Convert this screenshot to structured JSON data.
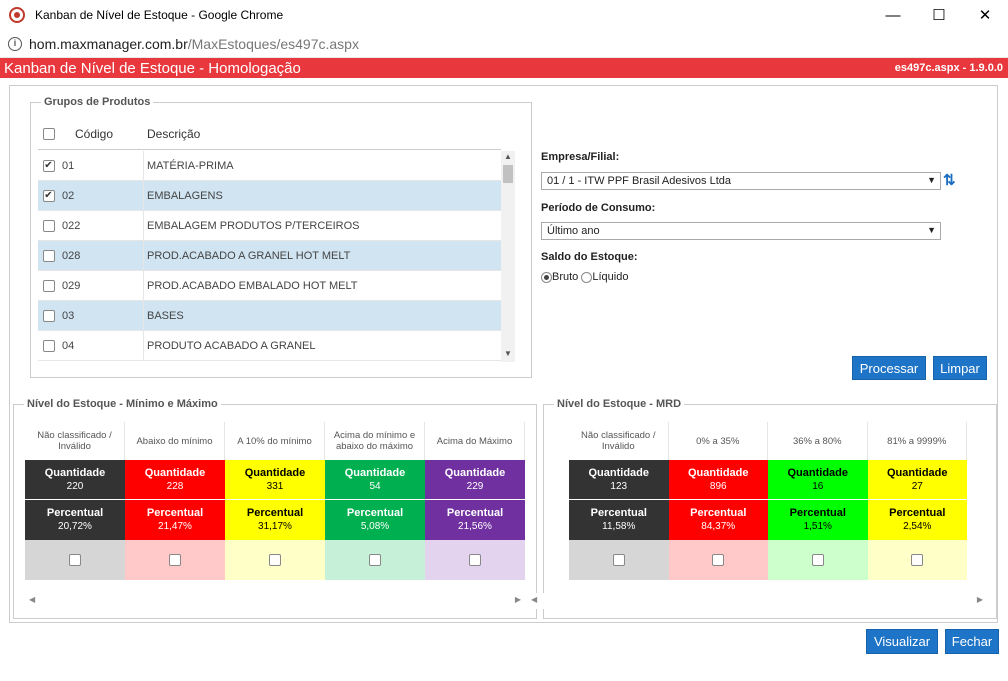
{
  "window": {
    "title": "Kanban de Nível de Estoque - Google Chrome",
    "min": "—",
    "max": "☐",
    "close": "✕"
  },
  "url": {
    "host": "hom.maxmanager.com.br",
    "path": "/MaxEstoques/es497c.aspx"
  },
  "app": {
    "title": "Kanban de Nível de Estoque - Homologação",
    "version": "es497c.aspx - 1.9.0.0"
  },
  "groups": {
    "legend": "Grupos de Produtos",
    "col_code": "Código",
    "col_desc": "Descrição",
    "rows": [
      {
        "code": "01",
        "desc": "MATÉRIA-PRIMA",
        "checked": true
      },
      {
        "code": "02",
        "desc": "EMBALAGENS",
        "checked": true
      },
      {
        "code": "022",
        "desc": "EMBALAGEM PRODUTOS P/TERCEIROS",
        "checked": false
      },
      {
        "code": "028",
        "desc": "PROD.ACABADO A GRANEL HOT MELT",
        "checked": false
      },
      {
        "code": "029",
        "desc": "PROD.ACABADO EMBALADO HOT MELT",
        "checked": false
      },
      {
        "code": "03",
        "desc": "BASES",
        "checked": false
      },
      {
        "code": "04",
        "desc": "PRODUTO ACABADO A GRANEL",
        "checked": false
      }
    ]
  },
  "form": {
    "empresa_label": "Empresa/Filial:",
    "empresa_value": "01 / 1 - ITW PPF Brasil Adesivos Ltda",
    "periodo_label": "Período de Consumo:",
    "periodo_value": "Último ano",
    "saldo_label": "Saldo do Estoque:",
    "bruto": "Bruto",
    "liquido": "Líquido",
    "processar": "Processar",
    "limpar": "Limpar"
  },
  "minmax": {
    "legend": "Nível do Estoque - Mínimo e Máximo",
    "cols": [
      {
        "head": "Não classificado / Inválido",
        "qty_label": "Quantidade",
        "qty": "220",
        "pct_label": "Percentual",
        "pct": "20,72%",
        "color": "#333333",
        "light": "#d6d6d6",
        "fg": "#ffffff"
      },
      {
        "head": "Abaixo do mínimo",
        "qty_label": "Quantidade",
        "qty": "228",
        "pct_label": "Percentual",
        "pct": "21,47%",
        "color": "#ff0000",
        "light": "#ffc9c9",
        "fg": "#ffffff"
      },
      {
        "head": "A 10% do mínimo",
        "qty_label": "Quantidade",
        "qty": "331",
        "pct_label": "Percentual",
        "pct": "31,17%",
        "color": "#ffff00",
        "light": "#ffffc8",
        "fg": "#000000"
      },
      {
        "head": "Acima do mínimo e abaixo do máximo",
        "qty_label": "Quantidade",
        "qty": "54",
        "pct_label": "Percentual",
        "pct": "5,08%",
        "color": "#00b050",
        "light": "#c6f0d8",
        "fg": "#ffffff"
      },
      {
        "head": "Acima do Máximo",
        "qty_label": "Quantidade",
        "qty": "229",
        "pct_label": "Percentual",
        "pct": "21,56%",
        "color": "#7030a0",
        "light": "#e3d3ef",
        "fg": "#ffffff"
      }
    ]
  },
  "mrd": {
    "legend": "Nível do Estoque - MRD",
    "cols": [
      {
        "head": "Não classificado / Inválido",
        "qty_label": "Quantidade",
        "qty": "123",
        "pct_label": "Percentual",
        "pct": "11,58%",
        "color": "#333333",
        "light": "#d6d6d6",
        "fg": "#ffffff"
      },
      {
        "head": "0% a 35%",
        "qty_label": "Quantidade",
        "qty": "896",
        "pct_label": "Percentual",
        "pct": "84,37%",
        "color": "#ff0000",
        "light": "#ffc9c9",
        "fg": "#ffffff"
      },
      {
        "head": "36% a 80%",
        "qty_label": "Quantidade",
        "qty": "16",
        "pct_label": "Percentual",
        "pct": "1,51%",
        "color": "#00ff00",
        "light": "#ccffcc",
        "fg": "#000000"
      },
      {
        "head": "81% a 9999%",
        "qty_label": "Quantidade",
        "qty": "27",
        "pct_label": "Percentual",
        "pct": "2,54%",
        "color": "#ffff00",
        "light": "#ffffc8",
        "fg": "#000000"
      }
    ]
  },
  "footer": {
    "visualizar": "Visualizar",
    "fechar": "Fechar"
  }
}
